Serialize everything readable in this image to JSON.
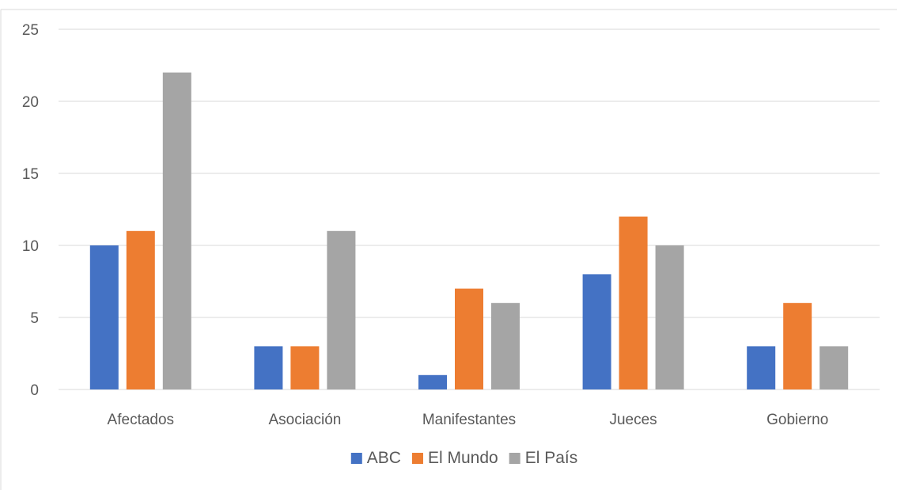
{
  "chart_data": {
    "type": "bar",
    "categories": [
      "Afectados",
      "Asociación",
      "Manifestantes",
      "Jueces",
      "Gobierno"
    ],
    "series": [
      {
        "name": "ABC",
        "color": "#4472C4",
        "values": [
          10,
          3,
          1,
          8,
          3
        ]
      },
      {
        "name": "El Mundo",
        "color": "#ED7D31",
        "values": [
          11,
          3,
          7,
          12,
          6
        ]
      },
      {
        "name": "El País",
        "color": "#A5A5A5",
        "values": [
          22,
          11,
          6,
          10,
          3
        ]
      }
    ],
    "ylim": [
      0,
      25
    ],
    "yticks": [
      0,
      5,
      10,
      15,
      20,
      25
    ],
    "grid": true,
    "legend": "bottom",
    "gridline_color": "#D9D9D9",
    "text_color": "#595959"
  }
}
